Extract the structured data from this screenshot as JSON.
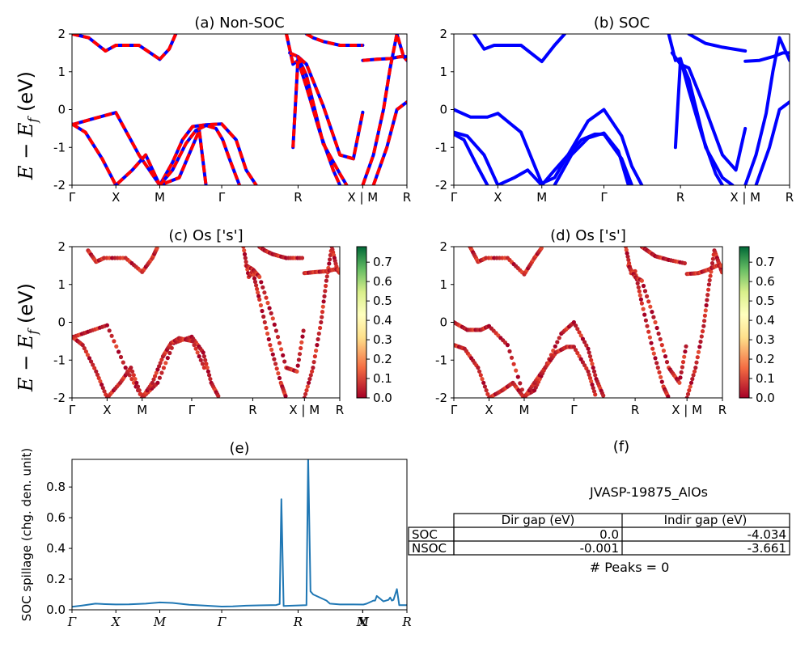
{
  "chart_data": [
    {
      "type": "line",
      "panel": "a",
      "title": "(a) Non-SOC",
      "ylabel": "E - E_f (eV)",
      "ylim": [
        -2,
        2
      ],
      "yticks": [
        -2,
        -1,
        0,
        1,
        2
      ],
      "k_labels": [
        "Γ",
        "X",
        "M",
        "Γ",
        "R",
        "X | M",
        "R"
      ],
      "k_positions": [
        0,
        0.131,
        0.262,
        0.447,
        0.675,
        0.868,
        1.0
      ],
      "styles": {
        "blue_solid": "#0000ff",
        "red_dashed": "#ff0000"
      },
      "series": [
        {
          "x": [
            0,
            0.06,
            0.131,
            0.2,
            0.262,
            0.32,
            0.38,
            0.4
          ],
          "y": [
            -0.4,
            -0.25,
            -0.08,
            -1.2,
            -2.0,
            -1.8,
            -0.55,
            -2.0
          ]
        },
        {
          "x": [
            0,
            0.05,
            0.1,
            0.131,
            0.2,
            0.262
          ],
          "y": [
            2.0,
            1.9,
            1.55,
            1.7,
            1.7,
            1.33
          ]
        },
        {
          "x": [
            0,
            0.04,
            0.09,
            0.131,
            0.18,
            0.22,
            0.262,
            0.3,
            0.33,
            0.36,
            0.4,
            0.447,
            0.49,
            0.52,
            0.55
          ],
          "y": [
            -0.38,
            -0.6,
            -1.3,
            -2.0,
            -1.6,
            -1.2,
            -2.0,
            -1.4,
            -0.8,
            -0.45,
            -0.4,
            -0.38,
            -0.8,
            -1.6,
            -2.0
          ]
        },
        {
          "x": [
            0.262,
            0.3,
            0.34,
            0.37,
            0.4,
            0.43,
            0.45,
            0.47,
            0.5
          ],
          "y": [
            -2.0,
            -1.6,
            -0.9,
            -0.55,
            -0.42,
            -0.5,
            -0.8,
            -1.3,
            -2.0
          ]
        },
        {
          "x": [
            0.262,
            0.29,
            0.31
          ],
          "y": [
            1.33,
            1.6,
            2.0
          ]
        },
        {
          "x": [
            0.64,
            0.66,
            0.675,
            0.7,
            0.74,
            0.78,
            0.8
          ],
          "y": [
            2.0,
            1.2,
            1.3,
            0.6,
            -0.6,
            -1.6,
            -2.0
          ]
        },
        {
          "x": [
            0.65,
            0.675,
            0.7,
            0.75,
            0.8,
            0.84,
            0.868
          ],
          "y": [
            1.5,
            1.4,
            1.2,
            0.1,
            -1.2,
            -1.3,
            -0.07
          ]
        },
        {
          "x": [
            0.66,
            0.675,
            0.7,
            0.75,
            0.8,
            0.82
          ],
          "y": [
            -1.0,
            1.4,
            0.9,
            -0.9,
            -1.7,
            -2.0
          ]
        },
        {
          "x": [
            0.7,
            0.72,
            0.75,
            0.8,
            0.868
          ],
          "y": [
            2.0,
            1.9,
            1.8,
            1.7,
            1.7
          ]
        },
        {
          "x": [
            0.868,
            0.9,
            0.93,
            0.95,
            0.97,
            0.99,
            1.0
          ],
          "y": [
            -2.0,
            -1.2,
            0.0,
            1.1,
            2.0,
            1.4,
            1.3
          ]
        },
        {
          "x": [
            0.868,
            0.91,
            0.95,
            0.98,
            1.0
          ],
          "y": [
            1.3,
            1.33,
            1.35,
            1.4,
            1.4
          ]
        },
        {
          "x": [
            0.9,
            0.94,
            0.97,
            1.0
          ],
          "y": [
            -2.0,
            -1.0,
            0.0,
            0.2
          ]
        }
      ]
    },
    {
      "type": "line",
      "panel": "b",
      "title": "(b) SOC",
      "ylim": [
        -2,
        2
      ],
      "yticks": [
        -2,
        -1,
        0,
        1,
        2
      ],
      "k_labels": [
        "Γ",
        "X",
        "M",
        "Γ",
        "R",
        "X | M",
        "R"
      ],
      "k_positions": [
        0,
        0.131,
        0.262,
        0.447,
        0.675,
        0.868,
        1.0
      ],
      "styles": {
        "line": "#0000ff"
      },
      "series": [
        {
          "x": [
            0,
            0.05,
            0.1,
            0.131,
            0.2,
            0.262,
            0.3,
            0.34
          ],
          "y": [
            0.0,
            -0.2,
            -0.2,
            -0.1,
            -0.6,
            -1.95,
            -1.8,
            -1.2
          ]
        },
        {
          "x": [
            0.34,
            0.4,
            0.447,
            0.5,
            0.53,
            0.56
          ],
          "y": [
            -1.2,
            -0.3,
            0.0,
            -0.7,
            -1.5,
            -2.0
          ]
        },
        {
          "x": [
            0,
            0.04,
            0.09,
            0.131,
            0.18,
            0.22,
            0.262,
            0.3,
            0.34,
            0.38,
            0.42,
            0.447,
            0.5,
            0.53
          ],
          "y": [
            -0.6,
            -0.7,
            -1.2,
            -2.0,
            -1.8,
            -1.6,
            -2.0,
            -1.6,
            -1.2,
            -0.8,
            -0.65,
            -0.65,
            -1.3,
            -2.0
          ]
        },
        {
          "x": [
            0,
            0.03,
            0.07,
            0.1
          ],
          "y": [
            -0.65,
            -0.8,
            -1.5,
            -2.0
          ]
        },
        {
          "x": [
            0.3,
            0.35,
            0.4,
            0.447,
            0.49,
            0.52
          ],
          "y": [
            -2.0,
            -1.2,
            -0.75,
            -0.62,
            -1.1,
            -2.0
          ]
        },
        {
          "x": [
            0.06,
            0.09,
            0.12,
            0.2,
            0.262,
            0.3,
            0.33
          ],
          "y": [
            2.0,
            1.6,
            1.7,
            1.7,
            1.27,
            1.7,
            2.0
          ]
        },
        {
          "x": [
            0.64,
            0.66,
            0.675,
            0.7,
            0.74,
            0.78,
            0.8
          ],
          "y": [
            2.0,
            1.3,
            1.35,
            0.5,
            -0.7,
            -1.7,
            -2.0
          ]
        },
        {
          "x": [
            0.65,
            0.675,
            0.7,
            0.75,
            0.8,
            0.84,
            0.868
          ],
          "y": [
            1.5,
            1.2,
            1.1,
            0.0,
            -1.2,
            -1.6,
            -0.5
          ]
        },
        {
          "x": [
            0.66,
            0.675,
            0.7,
            0.75,
            0.8,
            0.83
          ],
          "y": [
            -1.0,
            1.3,
            0.8,
            -1.0,
            -1.8,
            -2.0
          ]
        },
        {
          "x": [
            0.7,
            0.72,
            0.75,
            0.8,
            0.868
          ],
          "y": [
            2.0,
            1.9,
            1.75,
            1.65,
            1.55
          ]
        },
        {
          "x": [
            0.868,
            0.9,
            0.93,
            0.95,
            0.97,
            0.99,
            1.0
          ],
          "y": [
            -2.0,
            -1.2,
            -0.1,
            1.0,
            1.9,
            1.5,
            1.3
          ]
        },
        {
          "x": [
            0.868,
            0.91,
            0.95,
            0.98,
            1.0
          ],
          "y": [
            1.28,
            1.3,
            1.4,
            1.5,
            1.5
          ]
        },
        {
          "x": [
            0.9,
            0.94,
            0.97,
            1.0
          ],
          "y": [
            -2.0,
            -1.0,
            0.0,
            0.2
          ]
        }
      ]
    },
    {
      "type": "scatter",
      "panel": "c",
      "title": "(c)  Os ['s']",
      "ylabel": "E - E_f (eV)",
      "ylim": [
        -2,
        2
      ],
      "yticks": [
        -2,
        -1,
        0,
        1,
        2
      ],
      "k_labels": [
        "Γ",
        "X",
        "M",
        "Γ",
        "R",
        "X | M",
        "R"
      ],
      "k_positions": [
        0,
        0.131,
        0.262,
        0.447,
        0.675,
        0.868,
        1.0
      ],
      "colorbar": {
        "min": 0.0,
        "max": 0.78,
        "ticks": [
          "0.0",
          "0.1",
          "0.2",
          "0.3",
          "0.4",
          "0.5",
          "0.6",
          "0.7"
        ],
        "colors": [
          "#a50026",
          "#f46d43",
          "#fee08b",
          "#d9ef8b",
          "#66bd63",
          "#006837"
        ]
      },
      "series": [
        {
          "x": [
            0,
            0.06,
            0.131,
            0.2,
            0.262,
            0.32,
            0.38,
            0.447,
            0.49,
            0.52,
            0.55
          ],
          "y": [
            -0.4,
            -0.25,
            -0.08,
            -1.2,
            -2.0,
            -1.6,
            -0.55,
            -0.38,
            -0.8,
            -1.6,
            -2.0
          ]
        },
        {
          "x": [
            0,
            0.04,
            0.09,
            0.131,
            0.18,
            0.22,
            0.262,
            0.3,
            0.34,
            0.37,
            0.4,
            0.45,
            0.5
          ],
          "y": [
            -0.38,
            -0.6,
            -1.3,
            -2.0,
            -1.6,
            -1.2,
            -2.0,
            -1.6,
            -0.9,
            -0.55,
            -0.42,
            -0.5,
            -1.3
          ]
        },
        {
          "x": [
            0.06,
            0.09,
            0.12,
            0.2,
            0.262,
            0.3,
            0.32
          ],
          "y": [
            1.9,
            1.6,
            1.7,
            1.7,
            1.33,
            1.7,
            2.0
          ]
        },
        {
          "x": [
            0.64,
            0.66,
            0.675,
            0.7,
            0.74,
            0.78,
            0.8
          ],
          "y": [
            2.0,
            1.2,
            1.35,
            0.6,
            -0.6,
            -1.6,
            -2.0
          ]
        },
        {
          "x": [
            0.65,
            0.675,
            0.7,
            0.75,
            0.8,
            0.84,
            0.868
          ],
          "y": [
            1.5,
            1.4,
            1.2,
            0.1,
            -1.2,
            -1.3,
            -0.07
          ]
        },
        {
          "x": [
            0.7,
            0.72,
            0.75,
            0.8,
            0.868
          ],
          "y": [
            2.0,
            1.9,
            1.8,
            1.7,
            1.7
          ]
        },
        {
          "x": [
            0.868,
            0.9,
            0.93,
            0.95,
            0.97,
            0.99,
            1.0
          ],
          "y": [
            -2.0,
            -1.2,
            0.0,
            1.1,
            2.0,
            1.4,
            1.3
          ]
        },
        {
          "x": [
            0.868,
            0.91,
            0.95,
            0.98,
            1.0
          ],
          "y": [
            1.3,
            1.33,
            1.35,
            1.4,
            1.4
          ]
        }
      ]
    },
    {
      "type": "scatter",
      "panel": "d",
      "title": "(d) Os ['s']",
      "ylim": [
        -2,
        2
      ],
      "yticks": [
        -2,
        -1,
        0,
        1,
        2
      ],
      "k_labels": [
        "Γ",
        "X",
        "M",
        "Γ",
        "R",
        "X | M",
        "R"
      ],
      "k_positions": [
        0,
        0.131,
        0.262,
        0.447,
        0.675,
        0.868,
        1.0
      ],
      "colorbar": {
        "min": 0.0,
        "max": 0.78,
        "ticks": [
          "0.0",
          "0.1",
          "0.2",
          "0.3",
          "0.4",
          "0.5",
          "0.6",
          "0.7"
        ],
        "colors": [
          "#a50026",
          "#f46d43",
          "#fee08b",
          "#d9ef8b",
          "#66bd63",
          "#006837"
        ]
      },
      "series": [
        {
          "x": [
            0,
            0.05,
            0.1,
            0.131,
            0.2,
            0.262,
            0.3,
            0.34,
            0.4,
            0.447,
            0.5,
            0.53,
            0.56
          ],
          "y": [
            0.0,
            -0.2,
            -0.2,
            -0.1,
            -0.6,
            -1.95,
            -1.8,
            -1.2,
            -0.3,
            0.0,
            -0.7,
            -1.5,
            -2.0
          ]
        },
        {
          "x": [
            0,
            0.04,
            0.09,
            0.131,
            0.18,
            0.22,
            0.262,
            0.3,
            0.34,
            0.38,
            0.42,
            0.447,
            0.5,
            0.53
          ],
          "y": [
            -0.6,
            -0.7,
            -1.2,
            -2.0,
            -1.8,
            -1.6,
            -2.0,
            -1.6,
            -1.2,
            -0.8,
            -0.65,
            -0.65,
            -1.3,
            -2.0
          ]
        },
        {
          "x": [
            0.06,
            0.09,
            0.12,
            0.2,
            0.262,
            0.3,
            0.33
          ],
          "y": [
            2.0,
            1.6,
            1.7,
            1.7,
            1.27,
            1.7,
            2.0
          ]
        },
        {
          "x": [
            0.64,
            0.66,
            0.675,
            0.7,
            0.74,
            0.78,
            0.8
          ],
          "y": [
            2.0,
            1.3,
            1.35,
            0.5,
            -0.7,
            -1.7,
            -2.0
          ]
        },
        {
          "x": [
            0.65,
            0.675,
            0.7,
            0.75,
            0.8,
            0.84,
            0.868
          ],
          "y": [
            1.5,
            1.2,
            1.1,
            0.0,
            -1.2,
            -1.6,
            -0.5
          ]
        },
        {
          "x": [
            0.7,
            0.72,
            0.75,
            0.8,
            0.868
          ],
          "y": [
            2.0,
            1.9,
            1.75,
            1.65,
            1.55
          ]
        },
        {
          "x": [
            0.868,
            0.9,
            0.93,
            0.95,
            0.97,
            0.99,
            1.0
          ],
          "y": [
            -2.0,
            -1.2,
            -0.1,
            1.0,
            1.9,
            1.5,
            1.3
          ]
        },
        {
          "x": [
            0.868,
            0.91,
            0.95,
            0.98,
            1.0
          ],
          "y": [
            1.28,
            1.3,
            1.4,
            1.5,
            1.5
          ]
        }
      ]
    },
    {
      "type": "line",
      "panel": "e",
      "title": "(e)",
      "ylabel": "SOC spillage (chg. den. unit)",
      "ylim": [
        0,
        0.98
      ],
      "yticks": [
        0.0,
        0.2,
        0.4,
        0.6,
        0.8
      ],
      "ytick_labels": [
        "0.0",
        "0.2",
        "0.4",
        "0.6",
        "0.8"
      ],
      "k_labels": [
        "Γ",
        "X",
        "M",
        "Γ",
        "R",
        "X",
        "M",
        "R"
      ],
      "k_positions": [
        0,
        0.131,
        0.262,
        0.447,
        0.675,
        0.868,
        0.868,
        1.0
      ],
      "line_color": "#1f77b4",
      "series": [
        {
          "x": [
            0,
            0.03,
            0.07,
            0.1,
            0.131,
            0.17,
            0.22,
            0.262,
            0.3,
            0.35,
            0.4,
            0.447,
            0.48,
            0.52,
            0.56,
            0.61,
            0.62,
            0.625,
            0.632,
            0.7,
            0.705,
            0.712,
            0.72,
            0.76,
            0.77,
            0.8,
            0.84,
            0.87,
            0.88,
            0.9,
            0.905,
            0.91,
            0.93,
            0.945,
            0.95,
            0.955,
            0.96,
            0.965,
            0.97,
            0.977,
            0.98,
            0.99,
            1.0
          ],
          "y": [
            0.02,
            0.028,
            0.04,
            0.037,
            0.035,
            0.036,
            0.04,
            0.048,
            0.045,
            0.033,
            0.027,
            0.021,
            0.022,
            0.027,
            0.029,
            0.031,
            0.038,
            0.72,
            0.025,
            0.03,
            1.0,
            0.12,
            0.1,
            0.06,
            0.04,
            0.035,
            0.035,
            0.034,
            0.04,
            0.06,
            0.06,
            0.09,
            0.055,
            0.065,
            0.08,
            0.06,
            0.065,
            0.1,
            0.135,
            0.03,
            0.03,
            0.03,
            0.03
          ]
        }
      ]
    }
  ],
  "panel_f": {
    "title": "(f)",
    "material": "JVASP-19875_AlOs",
    "table": {
      "headers": [
        "",
        "Dir gap (eV)",
        "Indir gap (eV)"
      ],
      "rows": [
        [
          "SOC",
          "0.0",
          "-4.034"
        ],
        [
          "NSOC",
          "-0.001",
          "-3.661"
        ]
      ]
    },
    "peaks": "# Peaks = 0"
  }
}
